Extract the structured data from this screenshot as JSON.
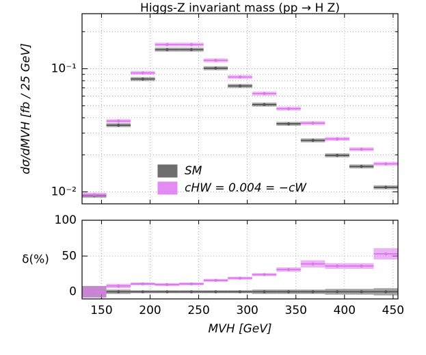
{
  "chart_data": [
    {
      "type": "histogram",
      "title": "Higgs-Z invariant mass (pp → H Z)",
      "y_label": "dσ/dMVH [fb / 25 GeV]",
      "bins": [
        130,
        155,
        180,
        205,
        230,
        255,
        280,
        305,
        330,
        355,
        380,
        405,
        430,
        455
      ],
      "xlim": [
        130,
        455
      ],
      "xticks": [
        150,
        200,
        250,
        300,
        350,
        400,
        450
      ],
      "log_y": true,
      "ylim": [
        0.008,
        0.28
      ],
      "yticks": [
        {
          "value": 0.01,
          "label": "10⁻²"
        },
        {
          "value": 0.1,
          "label": "10⁻¹"
        }
      ],
      "yticks_minor": [
        0.02,
        0.03,
        0.04,
        0.05,
        0.06,
        0.07,
        0.08,
        0.09,
        0.2
      ],
      "grid": true,
      "legend": "lower center",
      "series": [
        {
          "name": "SM",
          "color": "#555555",
          "values": [
            0.0093,
            0.0348,
            0.0825,
            0.143,
            0.143,
            0.101,
            0.0725,
            0.0512,
            0.0357,
            0.0262,
            0.0198,
            0.0161,
            0.0109
          ]
        },
        {
          "name": "cHW = 0.004 = −cW",
          "color": "#dd77ee",
          "values": [
            0.0095,
            0.0376,
            0.0925,
            0.157,
            0.157,
            0.117,
            0.0857,
            0.0629,
            0.0474,
            0.0362,
            0.0269,
            0.0222,
            0.0169
          ]
        }
      ]
    },
    {
      "type": "histogram",
      "x_label": "MVH [GeV]",
      "y_label": "δ(%)",
      "bins": [
        130,
        155,
        180,
        205,
        230,
        255,
        280,
        305,
        330,
        355,
        380,
        405,
        430,
        455
      ],
      "xlim": [
        130,
        455
      ],
      "xticks": [
        150,
        200,
        250,
        300,
        350,
        400,
        450
      ],
      "ylim": [
        -10,
        100
      ],
      "yticks": [
        0,
        50,
        100
      ],
      "grid": true,
      "series": [
        {
          "name": "SM",
          "color": "#555555",
          "values": [
            0,
            0,
            0,
            0,
            0,
            0,
            0,
            0,
            0,
            0,
            0,
            0,
            0
          ],
          "errors": [
            8,
            3,
            2,
            2,
            2,
            2,
            2,
            3,
            3,
            3,
            4,
            4,
            5
          ]
        },
        {
          "name": "cHW = 0.004 = −cW",
          "color": "#dd77ee",
          "values": [
            0,
            8,
            11,
            10,
            11,
            16,
            19,
            24,
            31,
            39,
            36,
            36,
            53
          ],
          "errors": [
            8,
            3,
            2,
            2,
            2,
            2,
            2,
            2,
            3,
            5,
            4,
            4,
            8
          ]
        }
      ]
    }
  ]
}
